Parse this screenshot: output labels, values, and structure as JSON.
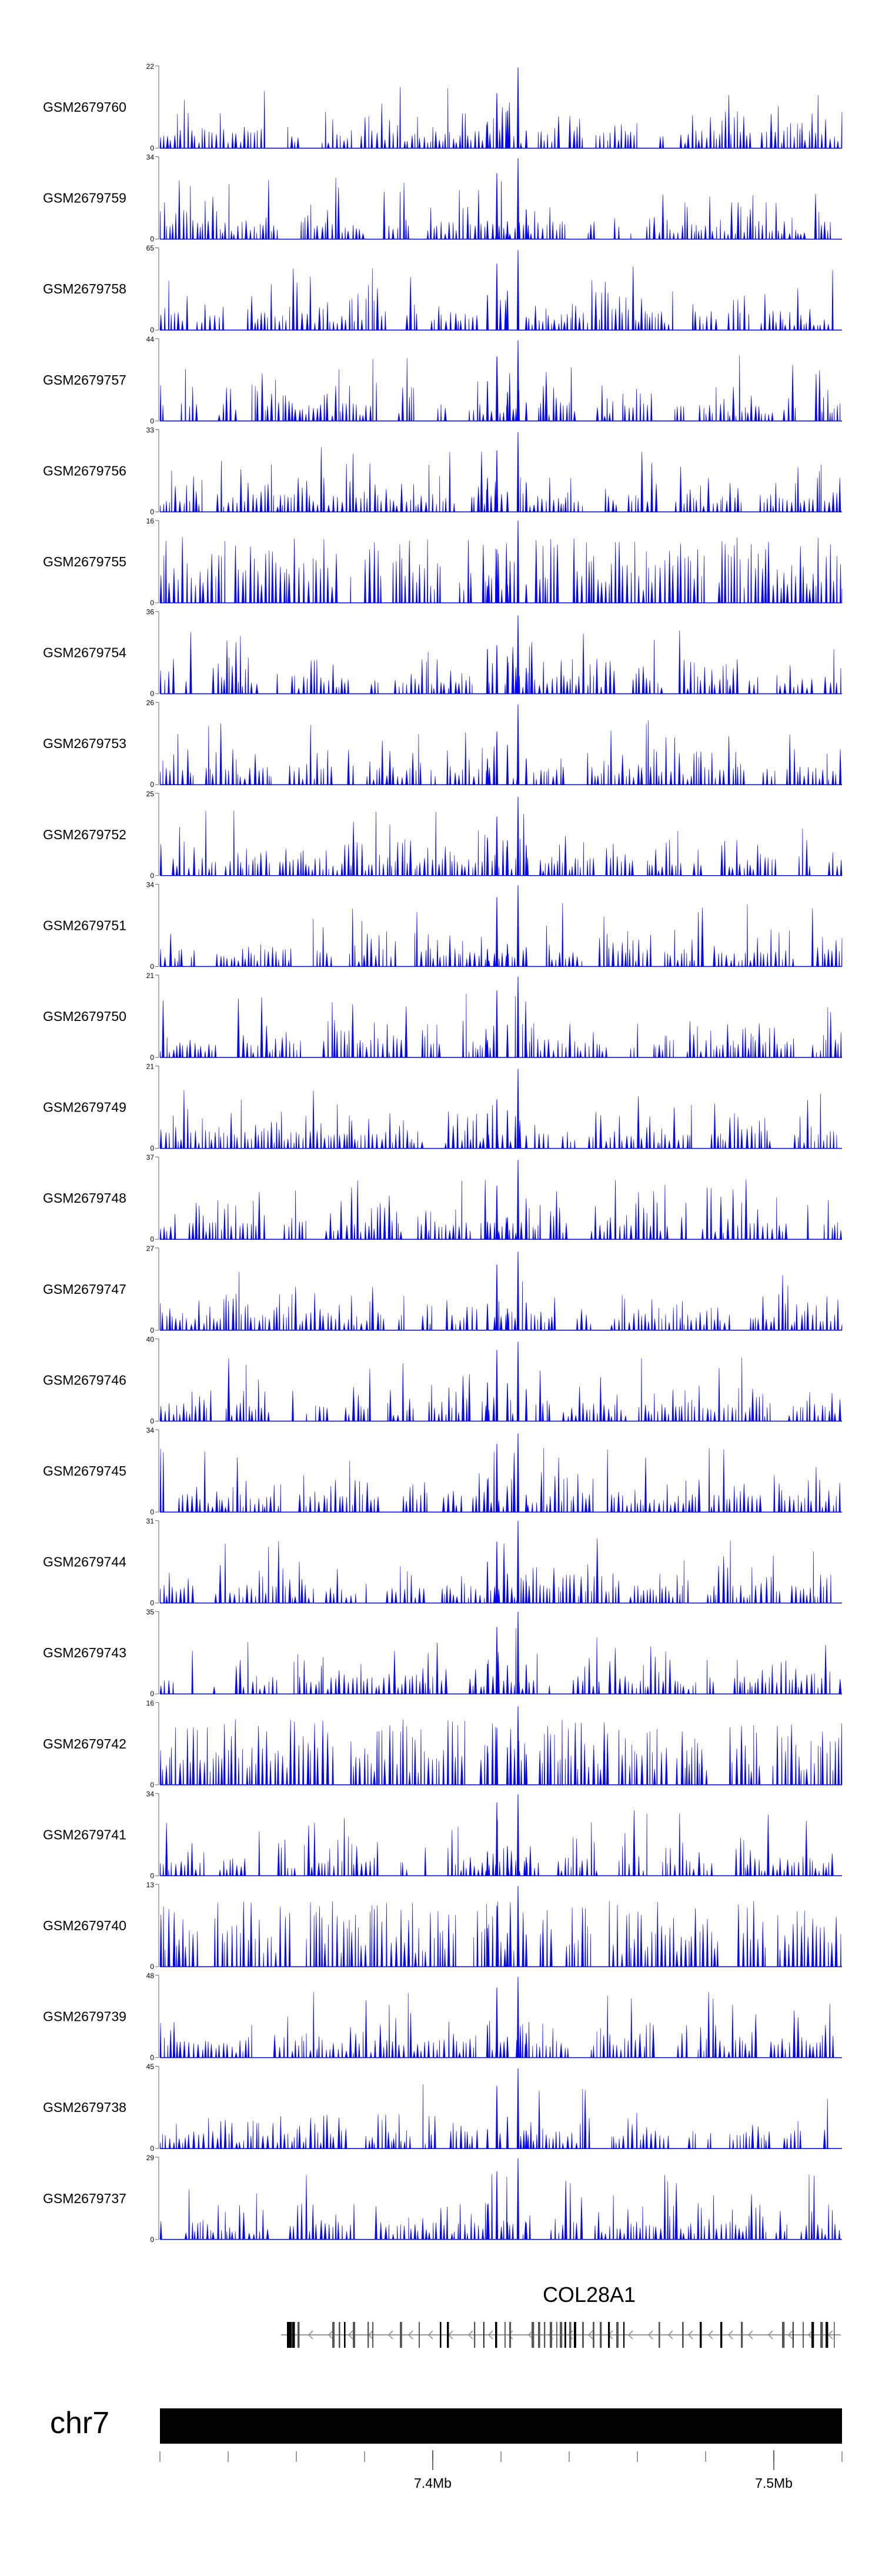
{
  "chart_data": {
    "type": "area",
    "color": "#0000ff",
    "x_range_mb": [
      7.32,
      7.52
    ],
    "gene_highlight_mb": 7.425,
    "tracks": [
      {
        "label": "GSM2679760",
        "ymax": "22",
        "ymin": "0"
      },
      {
        "label": "GSM2679759",
        "ymax": "34",
        "ymin": "0"
      },
      {
        "label": "GSM2679758",
        "ymax": "65",
        "ymin": "0"
      },
      {
        "label": "GSM2679757",
        "ymax": "44",
        "ymin": "0"
      },
      {
        "label": "GSM2679756",
        "ymax": "33",
        "ymin": "0"
      },
      {
        "label": "GSM2679755",
        "ymax": "16",
        "ymin": "0"
      },
      {
        "label": "GSM2679754",
        "ymax": "36",
        "ymin": "0"
      },
      {
        "label": "GSM2679753",
        "ymax": "26",
        "ymin": "0"
      },
      {
        "label": "GSM2679752",
        "ymax": "25",
        "ymin": "0"
      },
      {
        "label": "GSM2679751",
        "ymax": "34",
        "ymin": "0"
      },
      {
        "label": "GSM2679750",
        "ymax": "21",
        "ymin": "0"
      },
      {
        "label": "GSM2679749",
        "ymax": "21",
        "ymin": "0"
      },
      {
        "label": "GSM2679748",
        "ymax": "37",
        "ymin": "0"
      },
      {
        "label": "GSM2679747",
        "ymax": "27",
        "ymin": "0"
      },
      {
        "label": "GSM2679746",
        "ymax": "40",
        "ymin": "0"
      },
      {
        "label": "GSM2679745",
        "ymax": "34",
        "ymin": "0"
      },
      {
        "label": "GSM2679744",
        "ymax": "31",
        "ymin": "0"
      },
      {
        "label": "GSM2679743",
        "ymax": "35",
        "ymin": "0"
      },
      {
        "label": "GSM2679742",
        "ymax": "16",
        "ymin": "0"
      },
      {
        "label": "GSM2679741",
        "ymax": "34",
        "ymin": "0"
      },
      {
        "label": "GSM2679740",
        "ymax": "13",
        "ymin": "0"
      },
      {
        "label": "GSM2679739",
        "ymax": "48",
        "ymin": "0"
      },
      {
        "label": "GSM2679738",
        "ymax": "45",
        "ymin": "0"
      },
      {
        "label": "GSM2679737",
        "ymax": "29",
        "ymin": "0"
      }
    ],
    "gene": {
      "name": "COL28A1",
      "strand": "-"
    },
    "chromosome": "chr7",
    "x_ticks": [
      {
        "value": 7.4,
        "label": "7.4Mb"
      },
      {
        "value": 7.5,
        "label": "7.5Mb"
      }
    ],
    "minor_ticks_mb": [
      7.32,
      7.34,
      7.36,
      7.38,
      7.4,
      7.42,
      7.44,
      7.46,
      7.48,
      7.5,
      7.52
    ]
  }
}
